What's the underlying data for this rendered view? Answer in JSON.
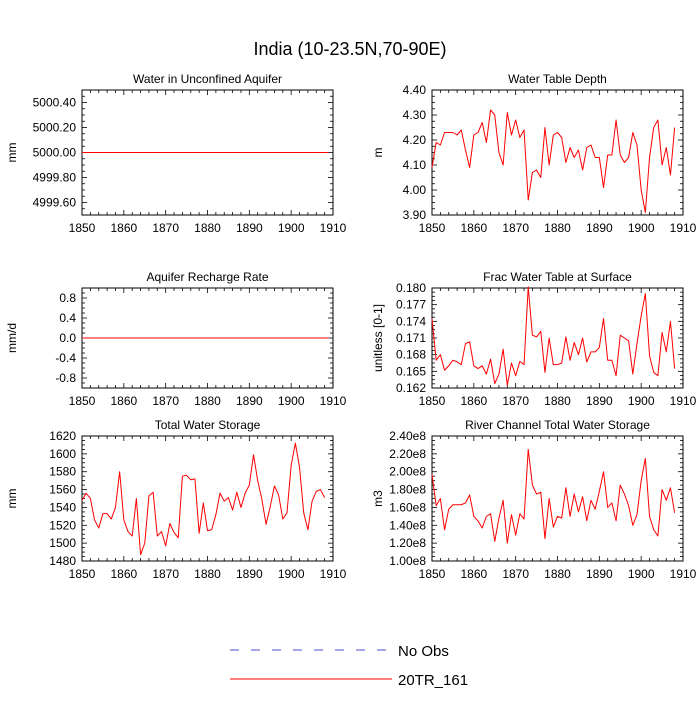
{
  "figure_title": "India (10-23.5N,70-90E)",
  "legend": {
    "entries": [
      {
        "label": "No Obs",
        "color": "#4b4bd6",
        "dash": true
      },
      {
        "label": "20TR_161",
        "color": "#ff0000",
        "dash": false
      }
    ]
  },
  "chart_data": [
    {
      "type": "line",
      "title": "Water in Unconfined Aquifer",
      "ylabel": "mm",
      "xlim": [
        1850,
        1910
      ],
      "ylim": [
        4999.5,
        5000.5
      ],
      "xticks": [
        1850,
        1860,
        1870,
        1880,
        1890,
        1900,
        1910
      ],
      "yticks": [
        4999.6,
        4999.8,
        5000.0,
        5000.2,
        5000.4
      ],
      "ytick_labels": [
        "4999.60",
        "4999.80",
        "5000.00",
        "5000.20",
        "5000.40"
      ],
      "series": [
        {
          "name": "20TR_161",
          "color": "#ff0000",
          "x_start": 1850,
          "values": [
            5000,
            5000,
            5000,
            5000,
            5000,
            5000,
            5000,
            5000,
            5000,
            5000,
            5000,
            5000,
            5000,
            5000,
            5000,
            5000,
            5000,
            5000,
            5000,
            5000,
            5000,
            5000,
            5000,
            5000,
            5000,
            5000,
            5000,
            5000,
            5000,
            5000,
            5000,
            5000,
            5000,
            5000,
            5000,
            5000,
            5000,
            5000,
            5000,
            5000,
            5000,
            5000,
            5000,
            5000,
            5000,
            5000,
            5000,
            5000,
            5000,
            5000,
            5000,
            5000,
            5000,
            5000,
            5000,
            5000,
            5000,
            5000,
            5000,
            5000
          ]
        }
      ]
    },
    {
      "type": "line",
      "title": "Water Table Depth",
      "ylabel": "m",
      "xlim": [
        1850,
        1910
      ],
      "ylim": [
        3.9,
        4.4
      ],
      "xticks": [
        1850,
        1860,
        1870,
        1880,
        1890,
        1900,
        1910
      ],
      "yticks": [
        3.9,
        4.0,
        4.1,
        4.2,
        4.3,
        4.4
      ],
      "ytick_labels": [
        "3.90",
        "4.00",
        "4.10",
        "4.20",
        "4.30",
        "4.40"
      ],
      "series": [
        {
          "name": "20TR_161",
          "color": "#ff0000",
          "x_start": 1850,
          "values": [
            4.09,
            4.19,
            4.18,
            4.23,
            4.23,
            4.23,
            4.22,
            4.24,
            4.16,
            4.09,
            4.22,
            4.23,
            4.27,
            4.19,
            4.32,
            4.3,
            4.15,
            4.1,
            4.31,
            4.22,
            4.28,
            4.21,
            4.24,
            3.96,
            4.07,
            4.08,
            4.05,
            4.25,
            4.1,
            4.22,
            4.23,
            4.21,
            4.11,
            4.17,
            4.13,
            4.16,
            4.08,
            4.17,
            4.18,
            4.13,
            4.13,
            4.01,
            4.14,
            4.14,
            4.28,
            4.14,
            4.11,
            4.13,
            4.23,
            4.18,
            4.0,
            3.91,
            4.13,
            4.25,
            4.28,
            4.1,
            4.17,
            4.06,
            4.25
          ]
        }
      ]
    },
    {
      "type": "line",
      "title": "Aquifer Recharge Rate",
      "ylabel": "mm/d",
      "xlim": [
        1850,
        1910
      ],
      "ylim": [
        -1.0,
        1.0
      ],
      "xticks": [
        1850,
        1860,
        1870,
        1880,
        1890,
        1900,
        1910
      ],
      "yticks": [
        -0.8,
        -0.4,
        0.0,
        0.4,
        0.8
      ],
      "ytick_labels": [
        "-0.8",
        "-0.4",
        "0.0",
        "0.4",
        "0.8"
      ],
      "series": [
        {
          "name": "20TR_161",
          "color": "#ff0000",
          "x_start": 1850,
          "values": [
            0,
            0,
            0,
            0,
            0,
            0,
            0,
            0,
            0,
            0,
            0,
            0,
            0,
            0,
            0,
            0,
            0,
            0,
            0,
            0,
            0,
            0,
            0,
            0,
            0,
            0,
            0,
            0,
            0,
            0,
            0,
            0,
            0,
            0,
            0,
            0,
            0,
            0,
            0,
            0,
            0,
            0,
            0,
            0,
            0,
            0,
            0,
            0,
            0,
            0,
            0,
            0,
            0,
            0,
            0,
            0,
            0,
            0,
            0,
            0
          ]
        }
      ]
    },
    {
      "type": "line",
      "title": "Frac Water Table at Surface",
      "ylabel": "unitless [0-1]",
      "xlim": [
        1850,
        1910
      ],
      "ylim": [
        0.162,
        0.18
      ],
      "xticks": [
        1850,
        1860,
        1870,
        1880,
        1890,
        1900,
        1910
      ],
      "yticks": [
        0.162,
        0.165,
        0.168,
        0.171,
        0.174,
        0.177,
        0.18
      ],
      "ytick_labels": [
        "0.162",
        "0.165",
        "0.168",
        "0.171",
        "0.174",
        "0.177",
        "0.180"
      ],
      "series": [
        {
          "name": "20TR_161",
          "color": "#ff0000",
          "x_start": 1850,
          "values": [
            0.1745,
            0.167,
            0.168,
            0.1652,
            0.166,
            0.167,
            0.1667,
            0.1662,
            0.17,
            0.1703,
            0.166,
            0.1655,
            0.166,
            0.1645,
            0.1672,
            0.1628,
            0.1645,
            0.169,
            0.1625,
            0.1665,
            0.1642,
            0.1668,
            0.1662,
            0.1802,
            0.1715,
            0.1712,
            0.1722,
            0.1648,
            0.171,
            0.1662,
            0.1662,
            0.1665,
            0.1712,
            0.167,
            0.1702,
            0.168,
            0.171,
            0.1667,
            0.1685,
            0.1685,
            0.1693,
            0.1745,
            0.167,
            0.167,
            0.1642,
            0.1715,
            0.171,
            0.1705,
            0.1645,
            0.17,
            0.175,
            0.179,
            0.1678,
            0.1648,
            0.1642,
            0.172,
            0.1685,
            0.174,
            0.1655
          ]
        }
      ]
    },
    {
      "type": "line",
      "title": "Total Water Storage",
      "ylabel": "mm",
      "xlim": [
        1850,
        1910
      ],
      "ylim": [
        1480,
        1620
      ],
      "xticks": [
        1850,
        1860,
        1870,
        1880,
        1890,
        1900,
        1910
      ],
      "yticks": [
        1480,
        1500,
        1520,
        1540,
        1560,
        1580,
        1600,
        1620
      ],
      "ytick_labels": [
        "1480",
        "1500",
        "1520",
        "1540",
        "1560",
        "1580",
        "1600",
        "1620"
      ],
      "series": [
        {
          "name": "20TR_161",
          "color": "#ff0000",
          "x_start": 1850,
          "values": [
            1548,
            1556,
            1550,
            1526,
            1517,
            1533,
            1533,
            1527,
            1540,
            1580,
            1526,
            1513,
            1508,
            1550,
            1487,
            1500,
            1553,
            1557,
            1508,
            1513,
            1497,
            1522,
            1512,
            1506,
            1575,
            1576,
            1571,
            1572,
            1511,
            1545,
            1514,
            1515,
            1532,
            1556,
            1547,
            1551,
            1537,
            1557,
            1540,
            1556,
            1565,
            1599,
            1570,
            1549,
            1521,
            1541,
            1564,
            1554,
            1527,
            1534,
            1587,
            1612,
            1585,
            1534,
            1515,
            1547,
            1558,
            1560,
            1551
          ]
        }
      ]
    },
    {
      "type": "line",
      "title": "River Channel Total Water Storage",
      "ylabel": "m3",
      "xlim": [
        1850,
        1910
      ],
      "ylim": [
        100000000,
        240000000
      ],
      "xticks": [
        1850,
        1860,
        1870,
        1880,
        1890,
        1900,
        1910
      ],
      "yticks": [
        100000000,
        120000000,
        140000000,
        160000000,
        180000000,
        200000000,
        220000000,
        240000000
      ],
      "ytick_labels": [
        "1.00e8",
        "1.20e8",
        "1.40e8",
        "1.60e8",
        "1.80e8",
        "2.00e8",
        "2.20e8",
        "2.40e8"
      ],
      "series": [
        {
          "name": "20TR_161",
          "color": "#ff0000",
          "x_start": 1850,
          "values": [
            197000000,
            162000000,
            170000000,
            135000000,
            158000000,
            163000000,
            163000000,
            163000000,
            165000000,
            174000000,
            150000000,
            145000000,
            137000000,
            150000000,
            153000000,
            122000000,
            148000000,
            168000000,
            120000000,
            152000000,
            129000000,
            153000000,
            147000000,
            225000000,
            185000000,
            175000000,
            177000000,
            125000000,
            170000000,
            138000000,
            150000000,
            148000000,
            182000000,
            150000000,
            175000000,
            155000000,
            172000000,
            145000000,
            168000000,
            158000000,
            178000000,
            200000000,
            160000000,
            165000000,
            145000000,
            185000000,
            175000000,
            162000000,
            140000000,
            152000000,
            190000000,
            215000000,
            150000000,
            135000000,
            128000000,
            180000000,
            168000000,
            182000000,
            154000000
          ]
        }
      ]
    }
  ]
}
